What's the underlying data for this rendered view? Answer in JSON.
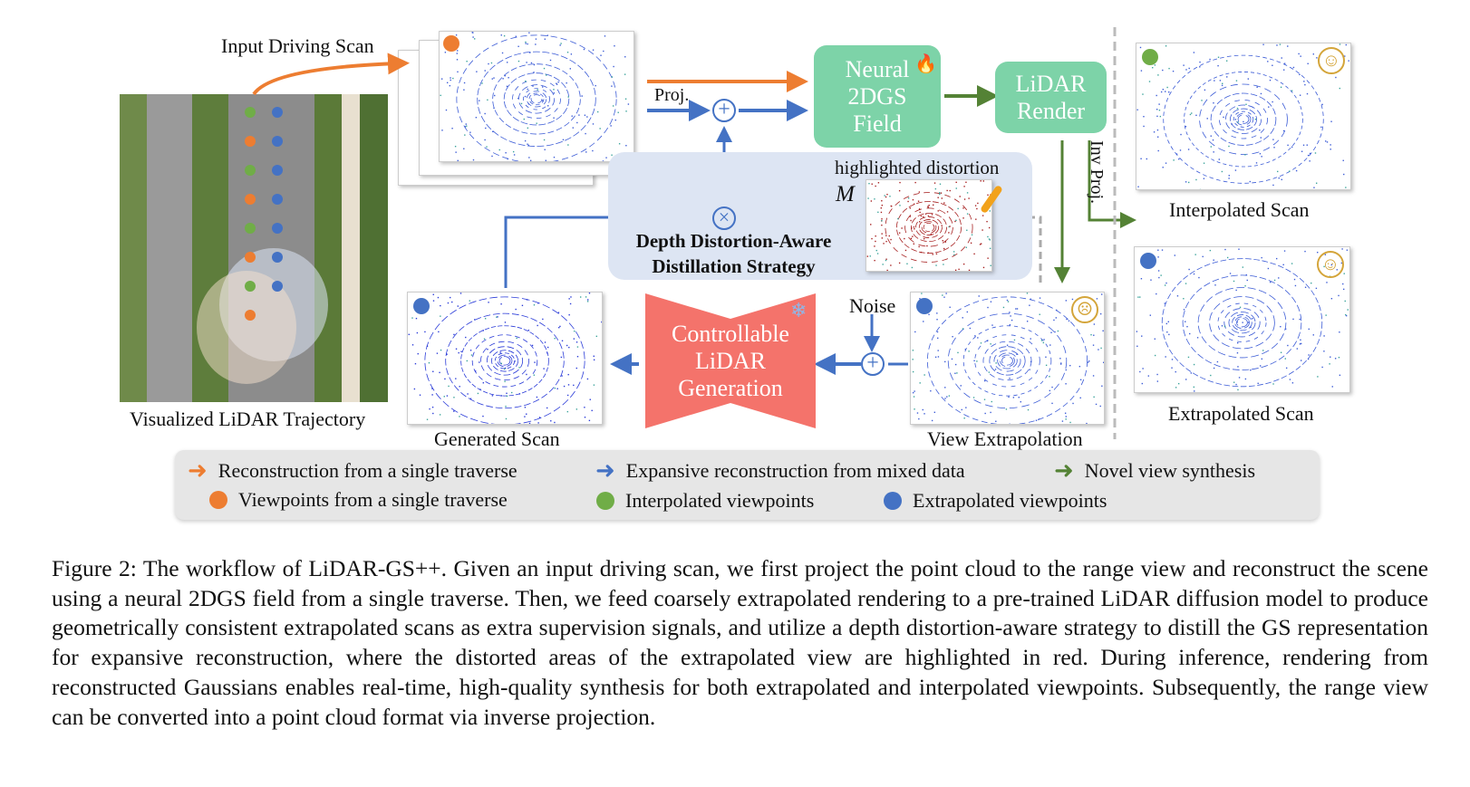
{
  "figure": {
    "labels": {
      "input_driving_scan": "Input Driving Scan",
      "visualized_trajectory": "Visualized LiDAR Trajectory",
      "proj": "Proj.",
      "neural_field": [
        "Neural",
        "2DGS",
        "Field"
      ],
      "lidar_render": [
        "LiDAR",
        "Render"
      ],
      "inv_proj": "Inv Proj.",
      "interpolated_scan": "Interpolated Scan",
      "extrapolated_scan": "Extrapolated Scan",
      "highlighted_distortion": "highlighted distortion",
      "mask_symbol": "M",
      "distillation": [
        "Depth Distortion-Aware",
        "Distillation Strategy"
      ],
      "noise": "Noise",
      "controllable_generation": [
        "Controllable",
        "LiDAR",
        "Generation"
      ],
      "generated_scan": "Generated Scan",
      "view_extrapolation": "View Extrapolation"
    },
    "icons": [
      "fire-icon",
      "snowflake-icon",
      "smiley-icon",
      "frown-icon",
      "brush-icon",
      "oplus-icon",
      "otimes-icon"
    ],
    "colors": {
      "orange": "#ed7d31",
      "blue": "#4472c4",
      "green": "#548235",
      "teal": "#7dd3a8",
      "red": "#f4736b",
      "panel": "#dde5f3"
    }
  },
  "legend": {
    "items": [
      {
        "label": "Reconstruction from a single traverse",
        "type": "arrow",
        "color": "#ed7d31"
      },
      {
        "label": "Expansive reconstruction from mixed data",
        "type": "arrow",
        "color": "#4472c4"
      },
      {
        "label": "Novel view synthesis",
        "type": "arrow",
        "color": "#548235"
      },
      {
        "label": "Viewpoints from a single traverse",
        "type": "dot",
        "color": "#ed7d31"
      },
      {
        "label": "Interpolated viewpoints",
        "type": "dot",
        "color": "#70ad47"
      },
      {
        "label": "Extrapolated viewpoints",
        "type": "dot",
        "color": "#4472c4"
      }
    ]
  },
  "caption": "Figure 2: The workflow of LiDAR-GS++. Given an input driving scan, we first project the point cloud to the range view and reconstruct the scene using a neural 2DGS field from a single traverse. Then, we feed coarsely extrapolated rendering to a pre-trained LiDAR diffusion model to produce geometrically consistent extrapolated scans as extra supervision signals, and utilize a depth distortion-aware strategy to distill the GS representation for expansive reconstruction, where the distorted areas of the extrapolated view are highlighted in red. During inference, rendering from reconstructed Gaussians enables real-time, high-quality synthesis for both extrapolated and interpolated viewpoints. Subsequently, the range view can be converted into a point cloud format via inverse projection."
}
